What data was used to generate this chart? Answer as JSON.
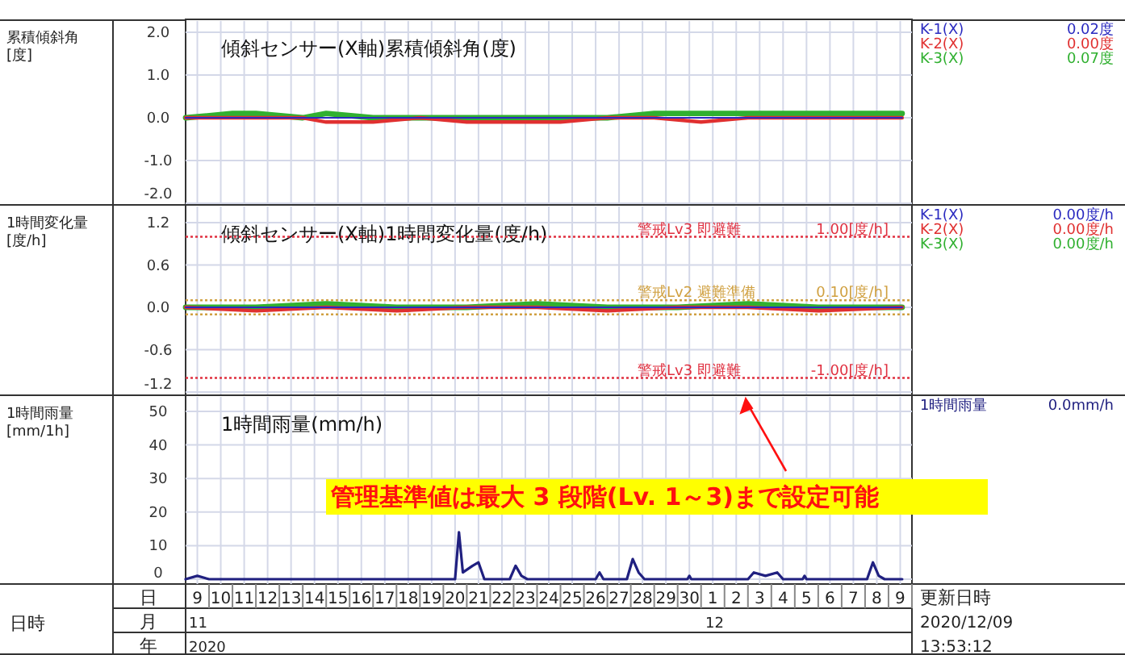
{
  "chart_data": [
    {
      "type": "line",
      "title": "傾斜センサー(X軸)累積傾斜角(度)",
      "ylabel": "累積傾斜角\n[度]",
      "legend": "right",
      "grid": true,
      "tick_labels": "y",
      "xlim": [
        "2020-11-09",
        "2020-12-10"
      ],
      "ylim": [
        -2,
        2
      ],
      "yticks": [
        {
          "value": 2,
          "label": "2.0"
        },
        {
          "value": 1,
          "label": "1.0"
        },
        {
          "value": 0,
          "label": "0.0"
        },
        {
          "value": -1,
          "label": "-1.0"
        },
        {
          "value": -2,
          "label": "-2.0"
        }
      ],
      "xticks": [
        {
          "value": "2020-11-09T12:00",
          "label": null
        },
        {
          "value": "2020-11-10T12:00",
          "label": null
        },
        {
          "value": "2020-11-11T12:00",
          "label": null
        },
        {
          "value": "2020-11-12T12:00",
          "label": null
        },
        {
          "value": "2020-11-13T12:00",
          "label": null
        },
        {
          "value": "2020-11-14T12:00",
          "label": null
        },
        {
          "value": "2020-11-15T12:00",
          "label": null
        },
        {
          "value": "2020-11-16T12:00",
          "label": null
        },
        {
          "value": "2020-11-17T12:00",
          "label": null
        },
        {
          "value": "2020-11-18T12:00",
          "label": null
        },
        {
          "value": "2020-11-19T12:00",
          "label": null
        },
        {
          "value": "2020-11-20T12:00",
          "label": null
        },
        {
          "value": "2020-11-21T12:00",
          "label": null
        },
        {
          "value": "2020-11-22T12:00",
          "label": null
        },
        {
          "value": "2020-11-23T12:00",
          "label": null
        },
        {
          "value": "2020-11-24T12:00",
          "label": null
        },
        {
          "value": "2020-11-25T12:00",
          "label": null
        },
        {
          "value": "2020-11-26T12:00",
          "label": null
        },
        {
          "value": "2020-11-27T12:00",
          "label": null
        },
        {
          "value": "2020-11-28T12:00",
          "label": null
        },
        {
          "value": "2020-11-29T12:00",
          "label": null
        },
        {
          "value": "2020-11-30T12:00",
          "label": null
        },
        {
          "value": "2020-12-01T12:00",
          "label": null
        },
        {
          "value": "2020-12-02T12:00",
          "label": null
        },
        {
          "value": "2020-12-03T12:00",
          "label": null
        },
        {
          "value": "2020-12-04T12:00",
          "label": null
        },
        {
          "value": "2020-12-05T12:00",
          "label": null
        },
        {
          "value": "2020-12-06T12:00",
          "label": null
        },
        {
          "value": "2020-12-07T12:00",
          "label": null
        },
        {
          "value": "2020-12-08T12:00",
          "label": null
        },
        {
          "value": "2020-12-09T12:00",
          "label": null
        }
      ],
      "x": [
        "2020-11-09",
        "2020-11-11",
        "2020-11-12",
        "2020-11-14",
        "2020-11-15",
        "2020-11-17",
        "2020-11-19",
        "2020-11-21",
        "2020-11-23",
        "2020-11-25",
        "2020-11-27",
        "2020-11-29",
        "2020-12-01",
        "2020-12-03",
        "2020-12-05",
        "2020-12-07",
        "2020-12-09T14:00"
      ],
      "series": [
        {
          "name": "K-1(X)",
          "color": "#2a2ac0",
          "values": [
            0,
            0,
            0,
            0,
            0,
            0,
            0,
            0,
            0,
            0,
            0,
            0,
            0,
            0,
            0,
            0,
            0
          ]
        },
        {
          "name": "K-2(X)",
          "color": "#e03030",
          "values": [
            0,
            0,
            0,
            0,
            -0.1,
            -0.1,
            0,
            -0.1,
            -0.1,
            -0.1,
            0,
            0,
            -0.1,
            0,
            0,
            0,
            0
          ]
        },
        {
          "name": "K-3(X)",
          "color": "#30b030",
          "values": [
            0,
            0.1,
            0.1,
            0,
            0.1,
            0,
            0,
            0,
            0,
            0,
            0,
            0.1,
            0.1,
            0.1,
            0.1,
            0.1,
            0.1
          ]
        }
      ],
      "annotations": [
        "0.02度",
        "0.00度",
        "0.07度"
      ]
    },
    {
      "type": "line",
      "title": "傾斜センサー(X軸)1時間変化量(度/h)",
      "ylabel": "1時間変化量\n[度/h]",
      "legend": "right",
      "grid": true,
      "tick_labels": "y",
      "xlim": [
        "2020-11-09",
        "2020-12-10"
      ],
      "ylim": [
        -1.2,
        1.2
      ],
      "yticks": [
        {
          "value": 1.2,
          "label": "1.2"
        },
        {
          "value": 0.6,
          "label": "0.6"
        },
        {
          "value": 0,
          "label": "0.0"
        },
        {
          "value": -0.6,
          "label": "-0.6"
        },
        {
          "value": -1.2,
          "label": "-1.2"
        }
      ],
      "xticks": [
        {
          "value": "2020-11-09T12:00",
          "label": null
        },
        {
          "value": "2020-11-10T12:00",
          "label": null
        },
        {
          "value": "2020-11-11T12:00",
          "label": null
        },
        {
          "value": "2020-11-12T12:00",
          "label": null
        },
        {
          "value": "2020-11-13T12:00",
          "label": null
        },
        {
          "value": "2020-11-14T12:00",
          "label": null
        },
        {
          "value": "2020-11-15T12:00",
          "label": null
        },
        {
          "value": "2020-11-16T12:00",
          "label": null
        },
        {
          "value": "2020-11-17T12:00",
          "label": null
        },
        {
          "value": "2020-11-18T12:00",
          "label": null
        },
        {
          "value": "2020-11-19T12:00",
          "label": null
        },
        {
          "value": "2020-11-20T12:00",
          "label": null
        },
        {
          "value": "2020-11-21T12:00",
          "label": null
        },
        {
          "value": "2020-11-22T12:00",
          "label": null
        },
        {
          "value": "2020-11-23T12:00",
          "label": null
        },
        {
          "value": "2020-11-24T12:00",
          "label": null
        },
        {
          "value": "2020-11-25T12:00",
          "label": null
        },
        {
          "value": "2020-11-26T12:00",
          "label": null
        },
        {
          "value": "2020-11-27T12:00",
          "label": null
        },
        {
          "value": "2020-11-28T12:00",
          "label": null
        },
        {
          "value": "2020-11-29T12:00",
          "label": null
        },
        {
          "value": "2020-11-30T12:00",
          "label": null
        },
        {
          "value": "2020-12-01T12:00",
          "label": null
        },
        {
          "value": "2020-12-02T12:00",
          "label": null
        },
        {
          "value": "2020-12-03T12:00",
          "label": null
        },
        {
          "value": "2020-12-04T12:00",
          "label": null
        },
        {
          "value": "2020-12-05T12:00",
          "label": null
        },
        {
          "value": "2020-12-06T12:00",
          "label": null
        },
        {
          "value": "2020-12-07T12:00",
          "label": null
        },
        {
          "value": "2020-12-08T12:00",
          "label": null
        },
        {
          "value": "2020-12-09T12:00",
          "label": null
        }
      ],
      "x": [
        "2020-11-09",
        "2020-11-12",
        "2020-11-15",
        "2020-11-18",
        "2020-11-21",
        "2020-11-24",
        "2020-11-27",
        "2020-11-30",
        "2020-12-03",
        "2020-12-06",
        "2020-12-09T14:00"
      ],
      "series": [
        {
          "name": "K-1(X)",
          "color": "#2a2ac0",
          "values": [
            0,
            0,
            0,
            0,
            0,
            0,
            0,
            0,
            0,
            0,
            0
          ]
        },
        {
          "name": "K-2(X)",
          "color": "#e03030",
          "values": [
            0,
            -0.05,
            0,
            -0.05,
            0,
            0,
            -0.05,
            0,
            0,
            -0.05,
            0
          ]
        },
        {
          "name": "K-3(X)",
          "color": "#30b030",
          "values": [
            0,
            0,
            0.05,
            0,
            0,
            0.05,
            0,
            0,
            0.05,
            0,
            0
          ]
        }
      ],
      "ref_lines": [
        {
          "axis": "y",
          "value": 1.0,
          "label": "警戒Lv3 即避難",
          "color": "#e03040",
          "line_style": "dotted"
        },
        {
          "axis": "y",
          "value": 0.1,
          "label": "警戒Lv2 避難準備",
          "color": "#d0a040",
          "line_style": "dotted"
        },
        {
          "axis": "y",
          "value": -0.1,
          "color": "#d0a040",
          "line_style": "dotted"
        },
        {
          "axis": "y",
          "value": -1.0,
          "label": "警戒Lv3 即避難",
          "color": "#e03040",
          "line_style": "dotted"
        }
      ],
      "annotations": [
        "0.00度/h",
        "0.00度/h",
        "0.00度/h",
        {
          "text": "1.00[度/h]",
          "x": "2020-12-09",
          "y": 1.0
        },
        {
          "text": "0.10[度/h]",
          "x": "2020-12-09",
          "y": 0.1
        },
        {
          "text": "-1.00[度/h]",
          "x": "2020-12-09",
          "y": -1.0
        }
      ]
    },
    {
      "type": "line",
      "title": "1時間雨量(mm/h)",
      "ylabel": "1時間雨量\n[mm/1h]",
      "legend": "right",
      "grid": true,
      "xlim": [
        "2020-11-09",
        "2020-12-10"
      ],
      "ylim": [
        0,
        50
      ],
      "yticks": [
        0,
        10,
        20,
        30,
        40,
        50
      ],
      "xticks": [
        {
          "value": "2020-11-09T12:00",
          "label": "9"
        },
        {
          "value": "2020-11-10T12:00",
          "label": "10"
        },
        {
          "value": "2020-11-11T12:00",
          "label": "11"
        },
        {
          "value": "2020-11-12T12:00",
          "label": "12"
        },
        {
          "value": "2020-11-13T12:00",
          "label": "13"
        },
        {
          "value": "2020-11-14T12:00",
          "label": "14"
        },
        {
          "value": "2020-11-15T12:00",
          "label": "15"
        },
        {
          "value": "2020-11-16T12:00",
          "label": "16"
        },
        {
          "value": "2020-11-17T12:00",
          "label": "17"
        },
        {
          "value": "2020-11-18T12:00",
          "label": "18"
        },
        {
          "value": "2020-11-19T12:00",
          "label": "19"
        },
        {
          "value": "2020-11-20T12:00",
          "label": "20"
        },
        {
          "value": "2020-11-21T12:00",
          "label": "21"
        },
        {
          "value": "2020-11-22T12:00",
          "label": "22"
        },
        {
          "value": "2020-11-23T12:00",
          "label": "23"
        },
        {
          "value": "2020-11-24T12:00",
          "label": "24"
        },
        {
          "value": "2020-11-25T12:00",
          "label": "25"
        },
        {
          "value": "2020-11-26T12:00",
          "label": "26"
        },
        {
          "value": "2020-11-27T12:00",
          "label": "27"
        },
        {
          "value": "2020-11-28T12:00",
          "label": "28"
        },
        {
          "value": "2020-11-29T12:00",
          "label": "29"
        },
        {
          "value": "2020-11-30T12:00",
          "label": "30"
        },
        {
          "value": "2020-12-01T12:00",
          "label": "1"
        },
        {
          "value": "2020-12-02T12:00",
          "label": "2"
        },
        {
          "value": "2020-12-03T12:00",
          "label": "3"
        },
        {
          "value": "2020-12-04T12:00",
          "label": "4"
        },
        {
          "value": "2020-12-05T12:00",
          "label": "5"
        },
        {
          "value": "2020-12-06T12:00",
          "label": "6"
        },
        {
          "value": "2020-12-07T12:00",
          "label": "7"
        },
        {
          "value": "2020-12-08T12:00",
          "label": "8"
        },
        {
          "value": "2020-12-09T12:00",
          "label": "9"
        }
      ],
      "x": [
        "2020-11-09T00:00",
        "2020-11-09T12:00",
        "2020-11-10T00:00",
        "2020-11-20T12:00",
        "2020-11-20T16:00",
        "2020-11-20T20:00",
        "2020-11-21T06:00",
        "2020-11-21T12:00",
        "2020-11-21T18:00",
        "2020-11-22T20:00",
        "2020-11-23T02:00",
        "2020-11-23T08:00",
        "2020-11-23T14:00",
        "2020-11-26T12:00",
        "2020-11-26T16:00",
        "2020-11-26T20:00",
        "2020-11-27T20:00",
        "2020-11-28T02:00",
        "2020-11-28T08:00",
        "2020-11-28T14:00",
        "2020-11-30T10:00",
        "2020-11-30T12:00",
        "2020-11-30T14:00",
        "2020-12-03T00:00",
        "2020-12-03T06:00",
        "2020-12-03T18:00",
        "2020-12-04T06:00",
        "2020-12-04T12:00",
        "2020-12-05T08:00",
        "2020-12-05T10:00",
        "2020-12-05T12:00",
        "2020-12-08T02:00",
        "2020-12-08T08:00",
        "2020-12-08T14:00",
        "2020-12-08T20:00",
        "2020-12-09T14:00"
      ],
      "series": [
        {
          "name": "1時間雨量",
          "color": "#202080",
          "values": [
            0,
            1,
            0,
            0,
            14,
            2,
            4,
            5,
            0,
            0,
            4,
            1,
            0,
            0,
            2,
            0,
            0,
            6,
            2,
            0,
            0,
            1,
            0,
            0,
            2,
            1,
            2,
            0,
            0,
            1,
            0,
            0,
            5,
            1,
            0,
            0
          ]
        }
      ],
      "annotations": [
        "0.0mm/h",
        "管理基準値は最大 3 段階(Lv. 1～3)まで設定可能",
        "日",
        "月",
        "年",
        "日時",
        "2020",
        "更新日時",
        "2020/12/09",
        "13:53:12",
        "11",
        "12"
      ]
    }
  ]
}
